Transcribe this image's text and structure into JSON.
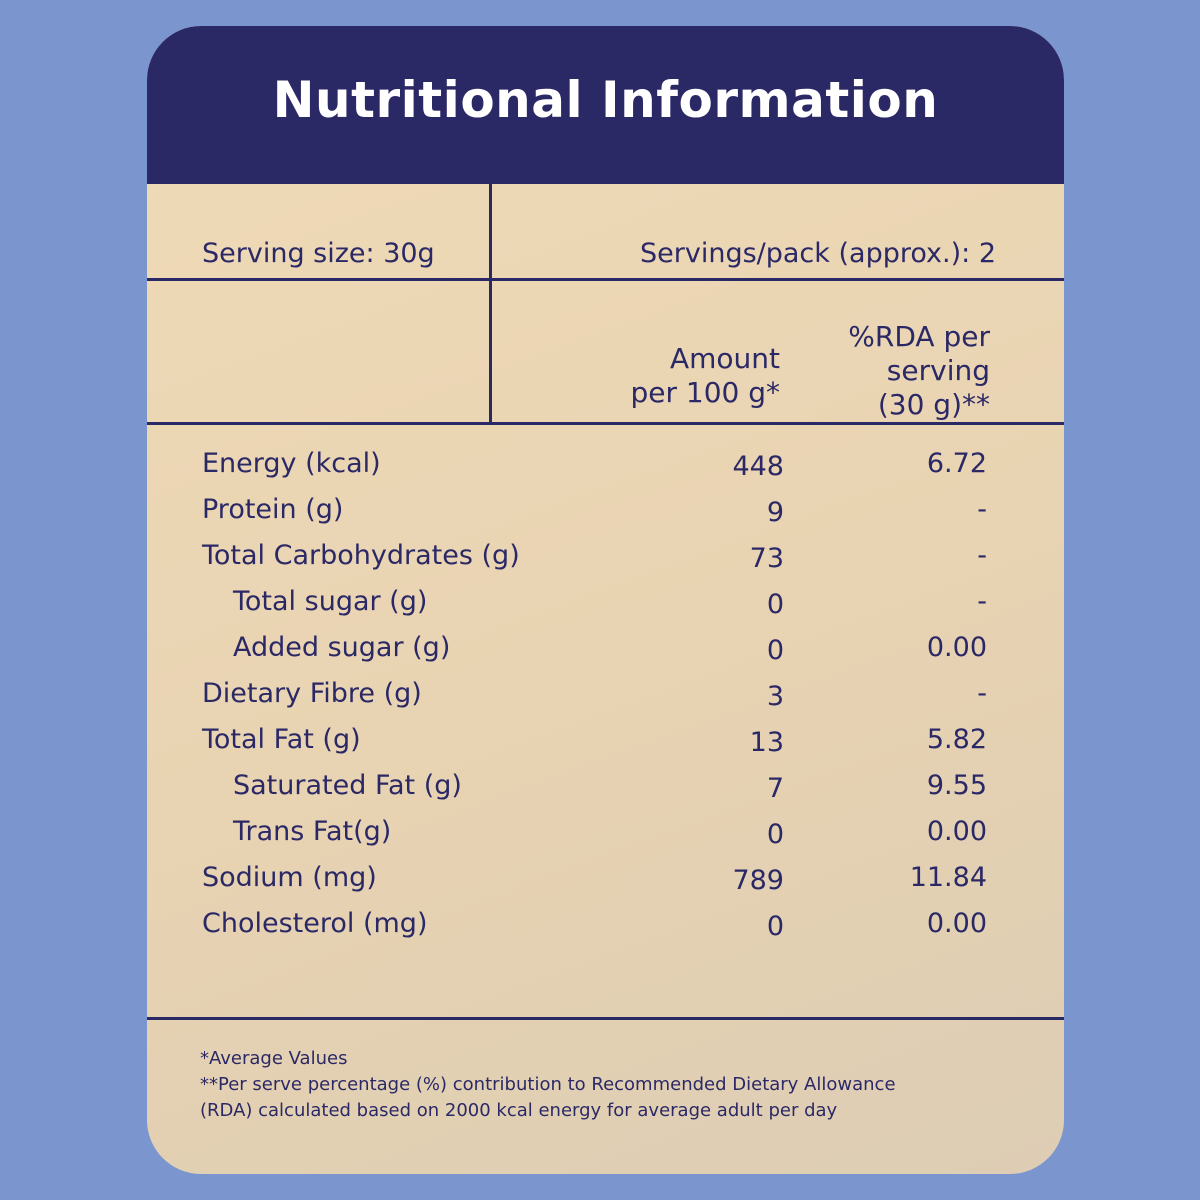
{
  "colors": {
    "background": "#7b95ce",
    "header": "#2b2866",
    "panel": "#efdab8",
    "text": "#2b2866"
  },
  "title": "Nutritional Information",
  "serving": {
    "size": "Serving size: 30g",
    "servings_per_pack": "Servings/pack (approx.): 2"
  },
  "columns": {
    "amount_line1": "Amount",
    "amount_line2": "per 100 g*",
    "rda_line1": "%RDA per",
    "rda_line2": "serving",
    "rda_line3": "(30 g)**"
  },
  "nutrients": [
    {
      "name": "Energy (kcal)",
      "amount": "448",
      "rda": "6.72"
    },
    {
      "name": "Protein (g)",
      "amount": "9",
      "rda": "-"
    },
    {
      "name": "Total Carbohydrates (g)",
      "amount": "73",
      "rda": "-"
    },
    {
      "name": "Total sugar (g)",
      "amount": "0",
      "rda": "-"
    },
    {
      "name": "Added sugar (g)",
      "amount": "0",
      "rda": "0.00"
    },
    {
      "name": "Dietary Fibre (g)",
      "amount": "3",
      "rda": "-"
    },
    {
      "name": "Total Fat (g)",
      "amount": "13",
      "rda": "5.82"
    },
    {
      "name": "Saturated Fat (g)",
      "amount": "7",
      "rda": "9.55"
    },
    {
      "name": "Trans Fat(g)",
      "amount": "0",
      "rda": "0.00"
    },
    {
      "name": "Sodium (mg)",
      "amount": "789",
      "rda": "11.84"
    },
    {
      "name": "Cholesterol (mg)",
      "amount": "0",
      "rda": "0.00"
    }
  ],
  "footnotes": {
    "line1": "*Average Values",
    "line2": "**Per serve percentage (%) contribution to Recommended Dietary Allowance",
    "line3": "(RDA) calculated based on 2000 kcal energy for average adult per day"
  }
}
